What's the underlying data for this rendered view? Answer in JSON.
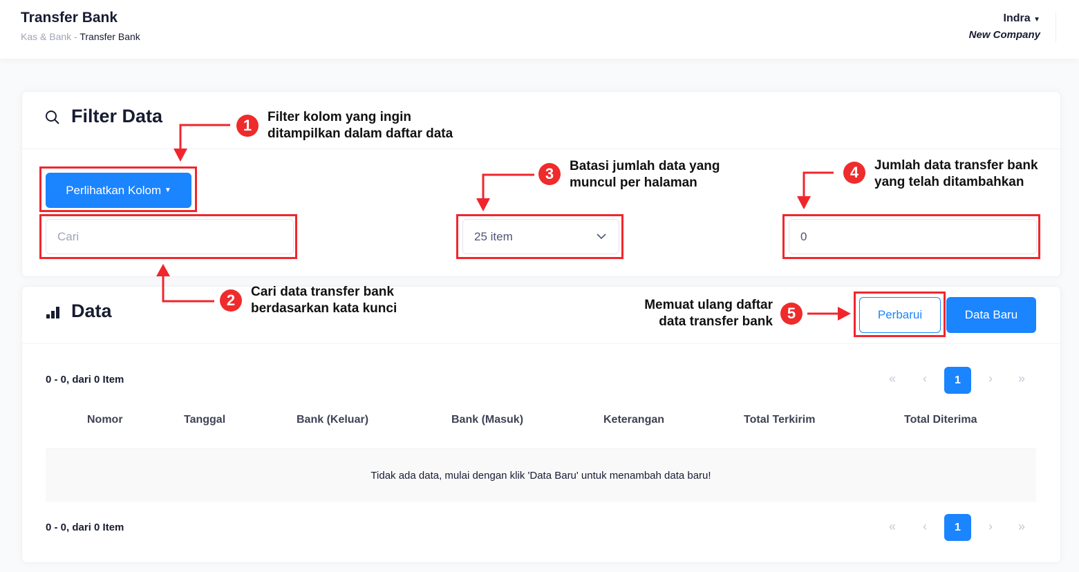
{
  "header": {
    "title": "Transfer Bank",
    "breadcrumb": [
      "Kas & Bank",
      "Transfer Bank"
    ],
    "breadcrumb_sep": "-",
    "user": "Indra",
    "company": "New Company"
  },
  "filter": {
    "title": "Filter Data",
    "columns_button": "Perlihatkan Kolom",
    "search_placeholder": "Cari",
    "page_size": "25 item",
    "total": "0"
  },
  "data": {
    "title": "Data",
    "refresh_button": "Perbarui",
    "new_button": "Data Baru",
    "count_text": "0 - 0, dari 0 Item",
    "columns": [
      "Nomor",
      "Tanggal",
      "Bank (Keluar)",
      "Bank (Masuk)",
      "Keterangan",
      "Total Terkirim",
      "Total Diterima"
    ],
    "empty_text": "Tidak ada data, mulai dengan klik 'Data Baru' untuk menambah data baru!",
    "pagination": {
      "first": "«",
      "prev": "‹",
      "current": "1",
      "next": "›",
      "last": "»"
    }
  },
  "annotations": [
    {
      "num": "1",
      "text": [
        "Filter kolom yang ingin",
        "ditampilkan dalam daftar data"
      ]
    },
    {
      "num": "2",
      "text": [
        "Cari data transfer bank",
        "berdasarkan kata kunci"
      ]
    },
    {
      "num": "3",
      "text": [
        "Batasi jumlah data yang",
        "muncul per halaman"
      ]
    },
    {
      "num": "4",
      "text": [
        "Jumlah data transfer bank",
        "yang telah ditambahkan"
      ]
    },
    {
      "num": "5",
      "text": [
        "Memuat ulang daftar",
        "data transfer bank"
      ]
    }
  ],
  "colors": {
    "primary": "#1b84ff",
    "annotation": "#f0262c"
  }
}
